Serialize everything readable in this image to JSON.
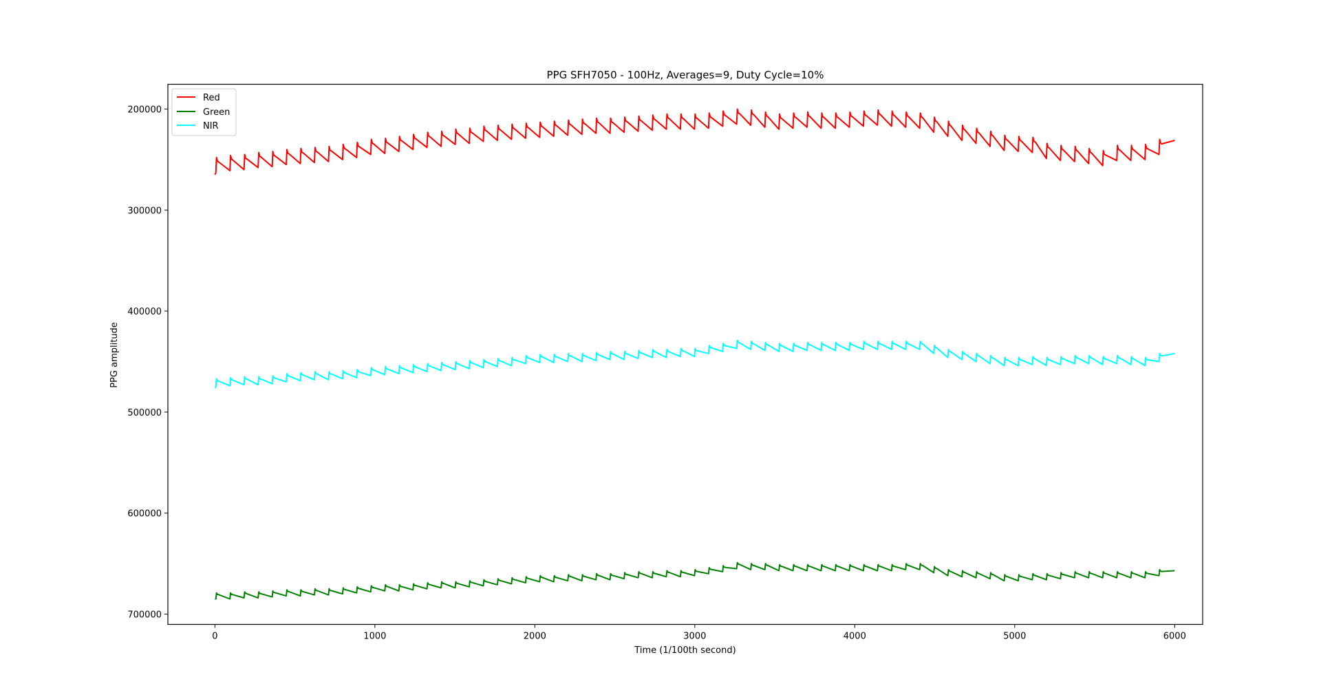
{
  "chart_data": {
    "type": "line",
    "title": "PPG SFH7050 - 100Hz, Averages=9, Duty Cycle=10%",
    "xlabel": "Time (1/100th second)",
    "ylabel": "PPG amplitude",
    "xlim": [
      -294,
      6175
    ],
    "ylim": [
      710200,
      175500
    ],
    "y_inverted": true,
    "grid": false,
    "legend_position": "top-left",
    "xticks": [
      "0",
      "1000",
      "2000",
      "3000",
      "4000",
      "5000",
      "6000"
    ],
    "yticks": [
      "200000",
      "300000",
      "400000",
      "500000",
      "600000",
      "700000"
    ],
    "beat_x": [
      10,
      98,
      186,
      274,
      362,
      450,
      538,
      626,
      714,
      802,
      890,
      978,
      1066,
      1154,
      1242,
      1330,
      1418,
      1506,
      1594,
      1682,
      1770,
      1858,
      1946,
      2034,
      2122,
      2210,
      2298,
      2386,
      2474,
      2562,
      2650,
      2738,
      2826,
      2914,
      3002,
      3090,
      3178,
      3266,
      3354,
      3442,
      3530,
      3618,
      3706,
      3794,
      3882,
      3970,
      4058,
      4146,
      4234,
      4322,
      4410,
      4498,
      4586,
      4674,
      4762,
      4850,
      4938,
      5026,
      5114,
      5202,
      5290,
      5378,
      5466,
      5554,
      5642,
      5730,
      5818,
      5906
    ],
    "series": [
      {
        "name": "Red",
        "color": "#ff0000",
        "start": [
          0,
          265000
        ],
        "end": [
          6000,
          231000
        ],
        "peaks": [
          248000,
          246000,
          245000,
          243000,
          242000,
          240000,
          239000,
          238000,
          237000,
          235000,
          233000,
          230000,
          229000,
          227000,
          225000,
          223000,
          222000,
          220000,
          219000,
          217000,
          216000,
          215000,
          214000,
          213000,
          212000,
          211000,
          210000,
          209000,
          209000,
          208000,
          207000,
          206000,
          205000,
          205000,
          205000,
          204000,
          202000,
          200000,
          201000,
          203000,
          205000,
          204000,
          203000,
          204000,
          204000,
          203000,
          202000,
          201000,
          202000,
          203000,
          204000,
          208000,
          212000,
          216000,
          219000,
          222000,
          226000,
          227000,
          228000,
          234000,
          236000,
          237000,
          239000,
          241000,
          236000,
          236000,
          235000,
          230000
        ],
        "troughs": [
          263000,
          261000,
          260000,
          258000,
          257000,
          255000,
          254000,
          253000,
          252000,
          250000,
          248000,
          245000,
          244000,
          242000,
          240000,
          238000,
          237000,
          235000,
          234000,
          232000,
          231000,
          230000,
          229000,
          228000,
          227000,
          226000,
          225000,
          224000,
          224000,
          223000,
          222000,
          221000,
          220000,
          220000,
          220000,
          219000,
          217000,
          215000,
          216000,
          218000,
          220000,
          219000,
          218000,
          219000,
          219000,
          218000,
          217000,
          216000,
          217000,
          218000,
          219000,
          223000,
          227000,
          231000,
          234000,
          237000,
          241000,
          242000,
          243000,
          249000,
          251000,
          252000,
          254000,
          256000,
          251000,
          251000,
          250000,
          245000
        ]
      },
      {
        "name": "Green",
        "color": "#008000",
        "start": [
          0,
          685000
        ],
        "end": [
          6000,
          657000
        ],
        "peaks": [
          679000,
          679000,
          678000,
          678000,
          677000,
          676000,
          676000,
          675000,
          675000,
          674000,
          673000,
          672000,
          671000,
          671000,
          670000,
          669000,
          668000,
          668000,
          667000,
          666000,
          665000,
          664000,
          663000,
          662000,
          662000,
          661000,
          661000,
          660000,
          660000,
          659000,
          658000,
          658000,
          657000,
          657000,
          656000,
          654000,
          652000,
          649000,
          650000,
          650000,
          651000,
          651000,
          651000,
          651000,
          651000,
          651000,
          651000,
          651000,
          651000,
          650000,
          650000,
          653000,
          656000,
          657000,
          658000,
          659000,
          661000,
          661000,
          660000,
          660000,
          659000,
          658000,
          658000,
          658000,
          658000,
          658000,
          658000,
          656000
        ],
        "troughs": [
          685000,
          685000,
          684000,
          684000,
          683000,
          682000,
          682000,
          681000,
          681000,
          680000,
          679000,
          678000,
          677000,
          677000,
          676000,
          675000,
          674000,
          674000,
          673000,
          672000,
          671000,
          670000,
          669000,
          668000,
          668000,
          667000,
          667000,
          666000,
          666000,
          665000,
          664000,
          664000,
          663000,
          663000,
          662000,
          660000,
          658000,
          655000,
          656000,
          656000,
          657000,
          657000,
          657000,
          657000,
          657000,
          657000,
          657000,
          657000,
          657000,
          656000,
          656000,
          659000,
          662000,
          663000,
          664000,
          665000,
          667000,
          667000,
          666000,
          666000,
          665000,
          664000,
          664000,
          664000,
          664000,
          664000,
          664000,
          662000
        ]
      },
      {
        "name": "NIR",
        "color": "#00ffff",
        "start": [
          0,
          476000
        ],
        "end": [
          6000,
          442000
        ],
        "peaks": [
          467000,
          466000,
          465000,
          465000,
          464000,
          462000,
          461000,
          460000,
          460000,
          459000,
          458000,
          456000,
          455000,
          454000,
          453000,
          452000,
          451000,
          450000,
          449000,
          448000,
          447000,
          446000,
          444000,
          443000,
          443000,
          442000,
          442000,
          441000,
          440000,
          440000,
          439000,
          438000,
          438000,
          437000,
          437000,
          434000,
          432000,
          429000,
          430000,
          431000,
          432000,
          432000,
          431000,
          431000,
          431000,
          431000,
          430000,
          430000,
          430000,
          430000,
          430000,
          434000,
          438000,
          440000,
          442000,
          444000,
          446000,
          446000,
          445000,
          446000,
          445000,
          444000,
          444000,
          445000,
          444000,
          445000,
          446000,
          442000
        ],
        "troughs": [
          475000,
          474000,
          473000,
          473000,
          472000,
          470000,
          469000,
          468000,
          468000,
          467000,
          466000,
          464000,
          463000,
          462000,
          461000,
          460000,
          459000,
          458000,
          457000,
          456000,
          455000,
          454000,
          452000,
          451000,
          451000,
          450000,
          450000,
          449000,
          448000,
          448000,
          447000,
          446000,
          446000,
          445000,
          445000,
          442000,
          440000,
          437000,
          438000,
          439000,
          440000,
          440000,
          439000,
          439000,
          439000,
          439000,
          438000,
          438000,
          438000,
          438000,
          438000,
          442000,
          446000,
          448000,
          450000,
          452000,
          454000,
          454000,
          453000,
          454000,
          453000,
          452000,
          452000,
          453000,
          452000,
          453000,
          454000,
          450000
        ]
      }
    ]
  }
}
